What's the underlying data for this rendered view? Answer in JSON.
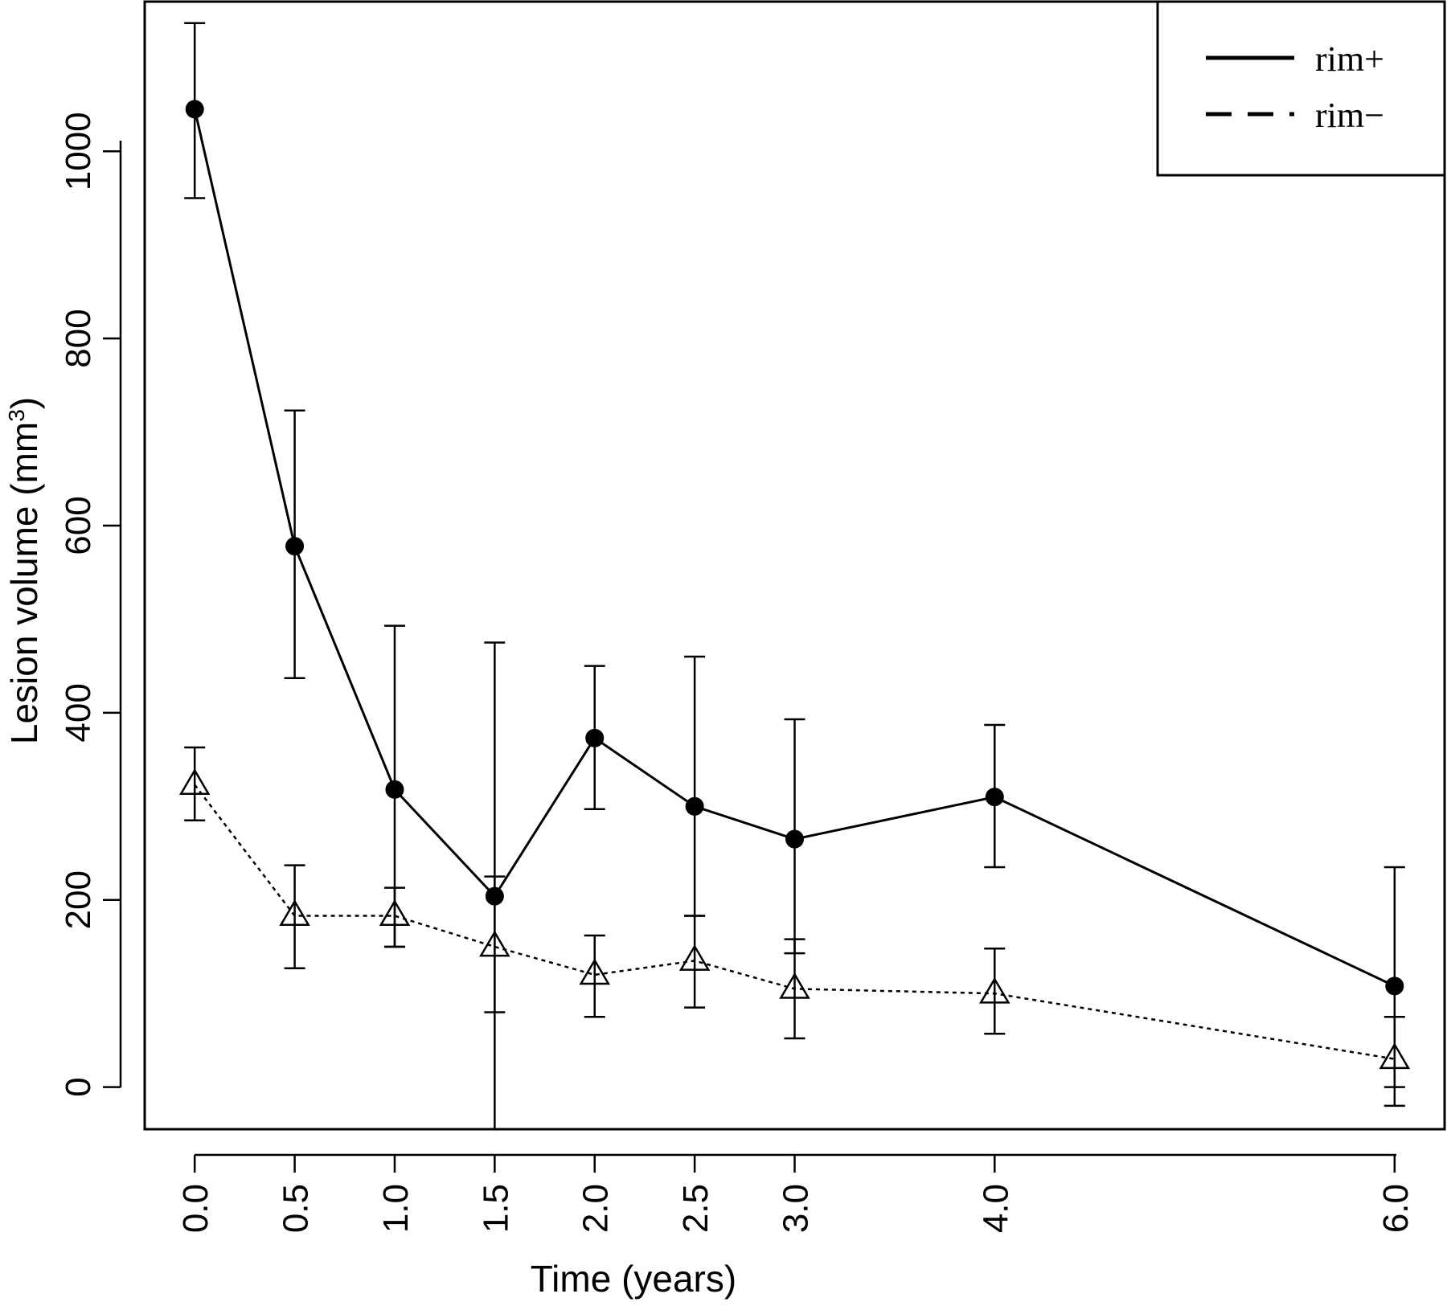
{
  "chart_data": {
    "type": "line",
    "xlabel": "Time (years)",
    "ylabel": {
      "text": "Lesion volume (mm",
      "superscript": "3",
      "suffix": ")"
    },
    "x": [
      0.0,
      0.5,
      1.0,
      1.5,
      2.0,
      2.5,
      3.0,
      4.0,
      6.0
    ],
    "x_tick_labels": [
      "0.0",
      "0.5",
      "1.0",
      "1.5",
      "2.0",
      "2.5",
      "3.0",
      "4.0",
      "6.0"
    ],
    "y_ticks": [
      0,
      200,
      400,
      600,
      800,
      1000
    ],
    "y_tick_labels": [
      "0",
      "200",
      "400",
      "600",
      "800",
      "1000"
    ],
    "xlim": [
      -0.25,
      6.25
    ],
    "ylim": [
      -45,
      1160
    ],
    "grid": false,
    "legend_position": "top-right",
    "series": [
      {
        "name": "rim+",
        "line_style": "solid",
        "marker": "filled-circle",
        "values": [
          1045,
          578,
          318,
          204,
          373,
          300,
          265,
          310,
          108
        ],
        "error_low": [
          950,
          437,
          150,
          -45,
          297,
          183,
          143,
          235,
          0
        ],
        "error_high": [
          1137,
          723,
          493,
          475,
          450,
          460,
          393,
          387,
          235
        ]
      },
      {
        "name": "rim−",
        "line_style": "dotted",
        "marker": "open-triangle",
        "values": [
          323,
          183,
          183,
          150,
          120,
          135,
          105,
          100,
          30
        ],
        "error_low": [
          285,
          127,
          150,
          80,
          75,
          85,
          52,
          57,
          -20
        ],
        "error_high": [
          363,
          237,
          213,
          225,
          162,
          183,
          158,
          148,
          75
        ]
      }
    ]
  },
  "colors": {
    "foreground": "#000000",
    "background": "#ffffff"
  }
}
